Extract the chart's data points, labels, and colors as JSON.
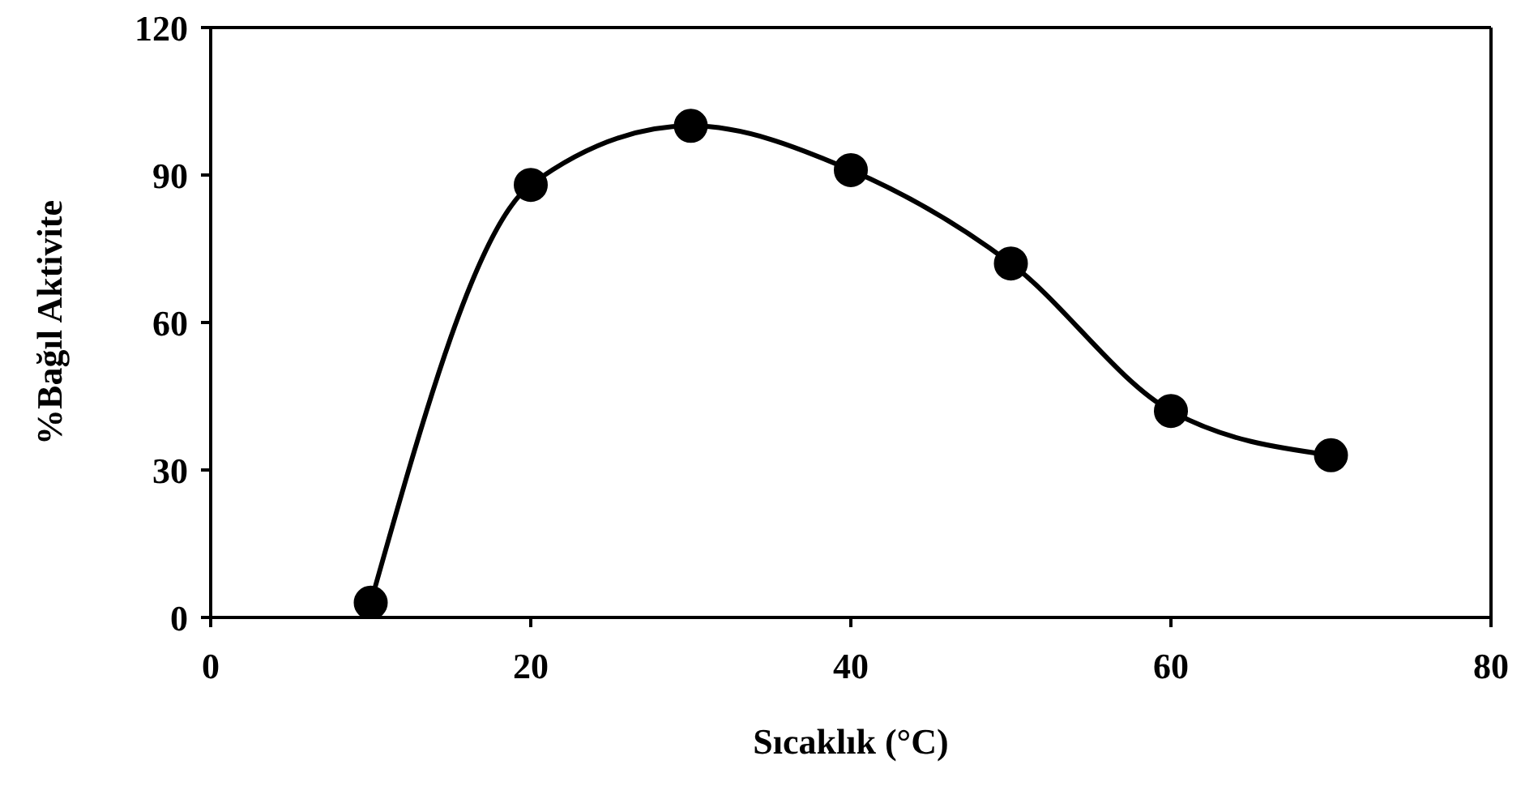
{
  "chart_data": {
    "type": "line",
    "xlabel": "Sıcaklık (°C)",
    "ylabel": "%Bağıl Aktivite",
    "x": [
      10,
      20,
      30,
      40,
      50,
      60,
      70
    ],
    "series": [
      {
        "color": "#000000",
        "values": [
          3,
          88,
          100,
          91,
          72,
          42,
          33
        ]
      }
    ],
    "xlim": [
      0,
      80
    ],
    "xticks": [
      0,
      20,
      40,
      60,
      80
    ],
    "ylim": [
      0,
      120
    ],
    "yticks": [
      0,
      30,
      60,
      90,
      120
    ],
    "grid": false,
    "legend": false,
    "marker": "circle",
    "line_style": "solid"
  }
}
